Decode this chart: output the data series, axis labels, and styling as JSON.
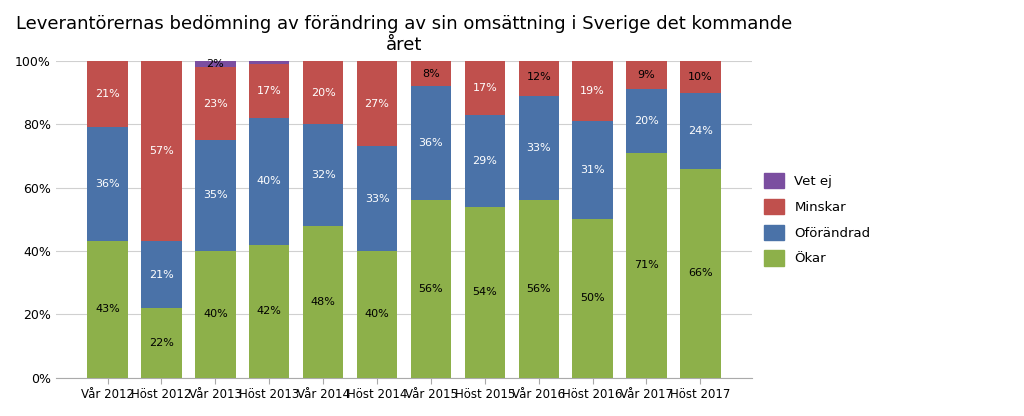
{
  "title": "Leverantörernas bedömning av förändring av sin omsättning i Sverige det kommande\nåret",
  "categories": [
    "Vår 2012",
    "Höst 2012",
    "Vår 2013",
    "Höst 2013",
    "Vår 2014",
    "Höst 2014",
    "Vår 2015",
    "Höst 2015",
    "Vår 2016",
    "Höst 2016",
    "Vår 2017",
    "Höst 2017"
  ],
  "okar": [
    43,
    22,
    40,
    42,
    48,
    40,
    56,
    54,
    56,
    50,
    71,
    66
  ],
  "oforandrad": [
    36,
    21,
    35,
    40,
    32,
    33,
    36,
    29,
    33,
    31,
    20,
    24
  ],
  "minskar": [
    21,
    57,
    23,
    17,
    20,
    27,
    8,
    17,
    12,
    19,
    9,
    10
  ],
  "vet_ej": [
    0,
    0,
    2,
    1,
    0,
    0,
    0,
    0,
    0,
    0,
    0,
    0
  ],
  "color_okar": "#8db04a",
  "color_oforandrad": "#4a72a8",
  "color_minskar": "#c0504d",
  "color_vet_ej": "#7b4ea0",
  "ylim": [
    0,
    100
  ],
  "yticks": [
    0,
    20,
    40,
    60,
    80,
    100
  ],
  "ytick_labels": [
    "0%",
    "20%",
    "40%",
    "60%",
    "80%",
    "100%"
  ],
  "bg_color": "#ffffff",
  "grid_color": "#d0d0d0",
  "title_fontsize": 13,
  "bar_width": 0.75,
  "label_fontsize": 8
}
